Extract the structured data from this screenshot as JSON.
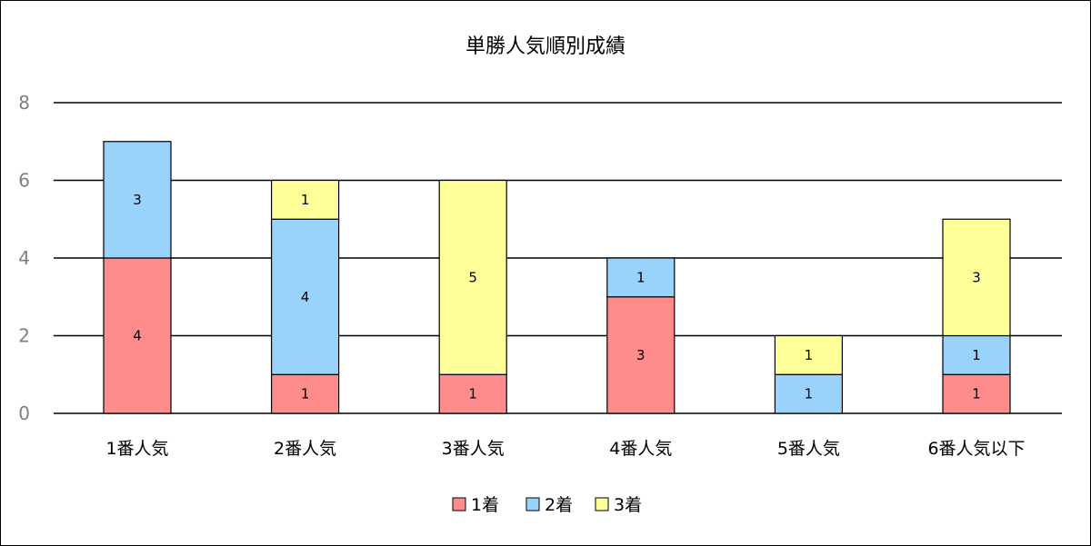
{
  "chart_data": {
    "type": "bar",
    "stacked": true,
    "title": "単勝人気順別成績",
    "categories": [
      "1番人気",
      "2番人気",
      "3番人気",
      "4番人気",
      "5番人気",
      "6番人気以下"
    ],
    "series": [
      {
        "name": "1着",
        "color": "#ff8c8c",
        "values": [
          4,
          1,
          1,
          3,
          0,
          1
        ]
      },
      {
        "name": "2着",
        "color": "#99d3fb",
        "values": [
          3,
          4,
          0,
          1,
          1,
          1
        ]
      },
      {
        "name": "3着",
        "color": "#ffff99",
        "values": [
          0,
          1,
          5,
          0,
          1,
          3
        ]
      }
    ],
    "ylim": [
      0,
      8
    ],
    "yticks": [
      0,
      2,
      4,
      6,
      8
    ],
    "grid": true,
    "legend_position": "bottom",
    "data_labels": true
  }
}
